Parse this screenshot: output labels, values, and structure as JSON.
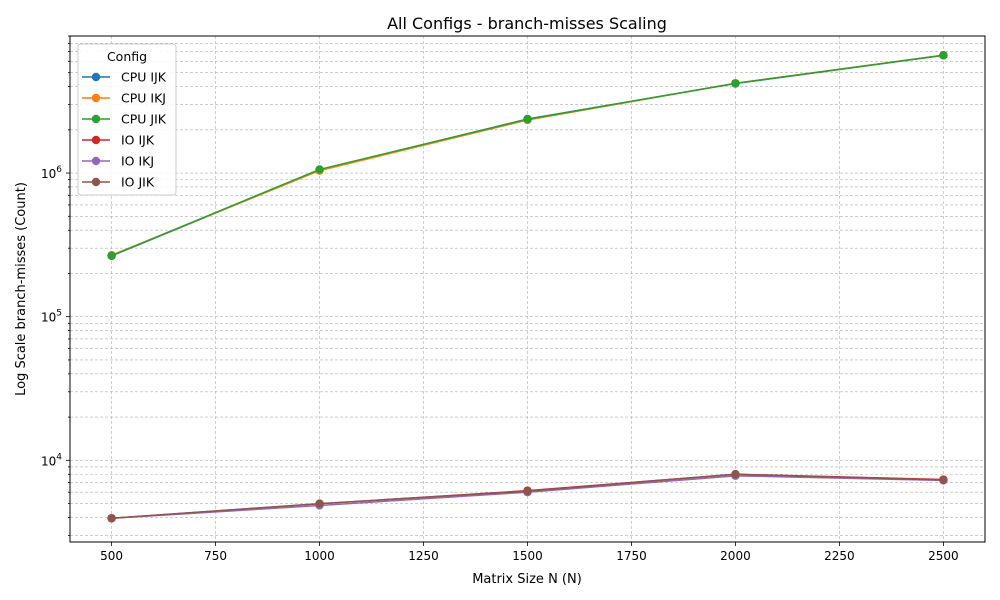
{
  "chart_data": {
    "type": "line",
    "title": "All Configs - branch-misses Scaling",
    "xlabel": "Matrix Size N (N)",
    "ylabel": "Log Scale branch-misses (Count)",
    "x": [
      500,
      1000,
      1500,
      2000,
      2500
    ],
    "xlim": [
      400,
      2600
    ],
    "ylim": [
      2700,
      9000000
    ],
    "yscale": "log",
    "x_ticks": [
      500,
      750,
      1000,
      1250,
      1500,
      1750,
      2000,
      2250,
      2500
    ],
    "y_ticks": [
      {
        "value": 10000,
        "base": "10",
        "exp": "4"
      },
      {
        "value": 100000,
        "base": "10",
        "exp": "5"
      },
      {
        "value": 1000000,
        "base": "10",
        "exp": "6"
      }
    ],
    "grid": true,
    "legend": {
      "title": "Config",
      "placement": "top-left"
    },
    "series": [
      {
        "name": "CPU IJK",
        "color": "#1f77b4",
        "values": [
          265000,
          1050000,
          2380000,
          4200000,
          6600000
        ]
      },
      {
        "name": "CPU IKJ",
        "color": "#ff7f0e",
        "values": [
          268000,
          1040000,
          2340000,
          4220000,
          6620000
        ]
      },
      {
        "name": "CPU JIK",
        "color": "#2ca02c",
        "values": [
          266000,
          1060000,
          2370000,
          4210000,
          6610000
        ]
      },
      {
        "name": "IO IJK",
        "color": "#d62728",
        "values": [
          3950,
          4980,
          6150,
          8000,
          7350
        ]
      },
      {
        "name": "IO IKJ",
        "color": "#9467bd",
        "values": [
          3950,
          4850,
          6000,
          7800,
          7250
        ]
      },
      {
        "name": "IO JIK",
        "color": "#8c564b",
        "values": [
          3950,
          5000,
          6100,
          8000,
          7300
        ]
      }
    ]
  }
}
